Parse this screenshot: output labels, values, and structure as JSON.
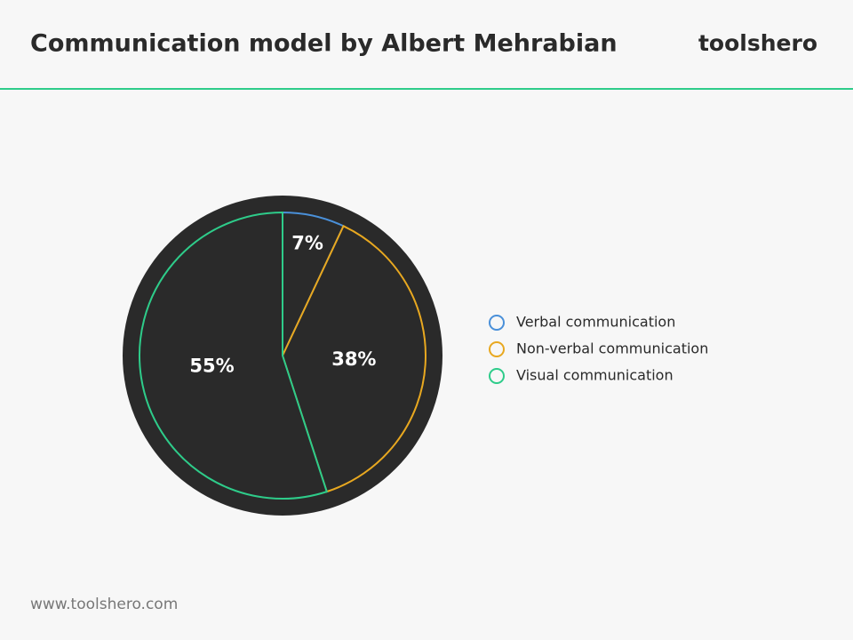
{
  "header": {
    "title": "Communication model by Albert Mehrabian",
    "brand": "toolshero"
  },
  "footer": {
    "url": "www.toolshero.com"
  },
  "chart_data": {
    "type": "pie",
    "categories": [
      "Verbal communication",
      "Non-verbal communication",
      "Visual communication"
    ],
    "values": [
      7,
      38,
      55
    ],
    "value_labels": [
      "7%",
      "38%",
      "55%"
    ],
    "colors": [
      "#4a90d9",
      "#e8a820",
      "#2ecc8a"
    ]
  }
}
